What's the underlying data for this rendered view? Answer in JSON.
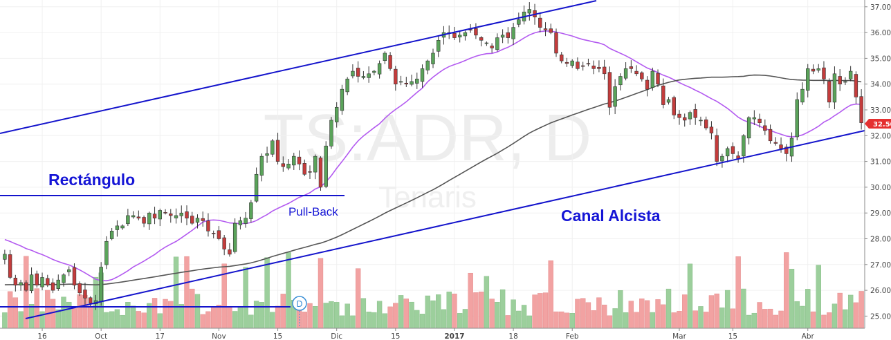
{
  "chart_data": {
    "type": "candlestick",
    "symbol_watermark": "TS:ADR, D",
    "name_watermark": "Tenaris",
    "last_price_label": "32.50",
    "ylim": [
      24.8,
      37.3
    ],
    "y_ticks": [
      "25.00",
      "26.00",
      "27.00",
      "28.00",
      "29.00",
      "30.00",
      "31.00",
      "32.00",
      "33.00",
      "34.00",
      "35.00",
      "36.00",
      "37.00"
    ],
    "x_ticks": [
      {
        "label": "16",
        "i": 7
      },
      {
        "label": "Oct",
        "i": 18
      },
      {
        "label": "17",
        "i": 29
      },
      {
        "label": "Nov",
        "i": 40
      },
      {
        "label": "15",
        "i": 51
      },
      {
        "label": "Dic",
        "i": 62
      },
      {
        "label": "15",
        "i": 73
      },
      {
        "label": "2017",
        "i": 84
      },
      {
        "label": "18",
        "i": 95
      },
      {
        "label": "Feb",
        "i": 106
      },
      {
        "label": "Mar",
        "i": 126
      },
      {
        "label": "15",
        "i": 136
      },
      {
        "label": "Abr",
        "i": 150
      }
    ],
    "annotations": {
      "rectangle_label": "Rectángulo",
      "pullback_label": "Pull-Back",
      "channel_label": "Canal Alcista",
      "dividend_marker": "D"
    },
    "colors": {
      "up": "#5aa35a",
      "down": "#c43c3c",
      "vol_up": "#9ccf9c",
      "vol_down": "#f2a2a2",
      "ma_fast": "#b35af0",
      "ma_slow": "#555555",
      "lines": "#1414cc",
      "price_tag": "#e53030"
    },
    "closes": [
      27.4,
      26.5,
      26.2,
      26.3,
      26.0,
      26.6,
      26.2,
      26.5,
      26.2,
      26.0,
      26.4,
      26.6,
      26.8,
      26.2,
      25.9,
      25.7,
      25.5,
      25.6,
      26.9,
      27.9,
      28.3,
      28.5,
      28.5,
      28.9,
      28.9,
      28.8,
      28.6,
      29.0,
      28.8,
      29.1,
      29.0,
      28.9,
      28.9,
      29.0,
      28.8,
      28.6,
      28.8,
      28.7,
      28.3,
      28.2,
      28.0,
      27.6,
      27.4,
      28.6,
      28.7,
      28.8,
      29.4,
      30.5,
      31.2,
      31.3,
      31.8,
      31.0,
      30.8,
      30.9,
      31.2,
      30.9,
      30.5,
      30.6,
      31.2,
      30.0,
      31.6,
      32.6,
      33.1,
      33.8,
      34.2,
      34.5,
      34.3,
      34.3,
      34.4,
      34.5,
      34.8,
      35.2,
      34.6,
      34.0,
      34.1,
      34.0,
      34.1,
      34.2,
      34.6,
      34.9,
      35.2,
      35.7,
      36.0,
      36.0,
      35.8,
      35.9,
      36.0,
      36.1,
      35.9,
      35.7,
      35.6,
      35.4,
      35.8,
      35.9,
      35.8,
      36.2,
      36.5,
      36.8,
      36.9,
      36.6,
      36.2,
      36.1,
      36.0,
      35.2,
      34.9,
      34.8,
      34.9,
      34.6,
      34.7,
      34.8,
      34.6,
      34.6,
      34.4,
      33.1,
      33.9,
      34.3,
      34.6,
      34.6,
      34.4,
      34.2,
      33.8,
      34.5,
      34.0,
      33.2,
      33.4,
      32.8,
      32.7,
      32.6,
      32.9,
      32.7,
      32.6,
      32.3,
      32.1,
      31.0,
      31.2,
      31.5,
      31.3,
      31.1,
      32.0,
      32.7,
      32.7,
      32.5,
      32.2,
      31.8,
      31.7,
      31.5,
      31.3,
      31.9,
      33.4,
      33.8,
      34.6,
      34.5,
      34.6,
      34.2,
      33.3,
      34.4,
      34.0,
      34.1,
      34.5,
      33.5,
      32.5
    ]
  }
}
